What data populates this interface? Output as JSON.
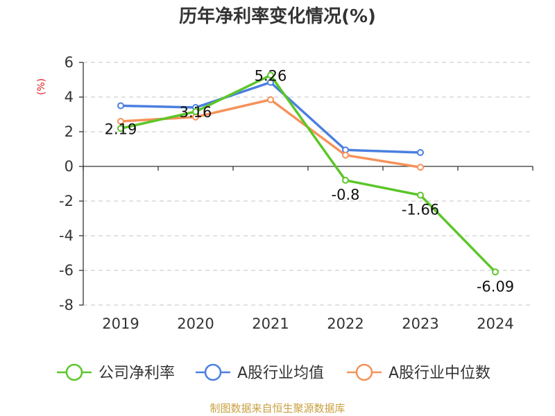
{
  "chart_data": {
    "type": "line",
    "title": "历年净利率变化情况(%)",
    "unit_label": "(%)",
    "categories": [
      "2019",
      "2020",
      "2021",
      "2022",
      "2023",
      "2024"
    ],
    "yticks": [
      "6",
      "4",
      "2",
      "0",
      "-2",
      "-4",
      "-6",
      "-8"
    ],
    "ylim": [
      -8,
      6
    ],
    "grid": true,
    "legend_position": "bottom",
    "series": [
      {
        "name": "公司净利率",
        "color": "#5cc629",
        "values": [
          2.19,
          3.16,
          5.26,
          -0.8,
          -1.66,
          -6.09
        ],
        "labels": [
          "2.19",
          "3.16",
          "5.26",
          "-0.8",
          "-1.66",
          "-6.09"
        ]
      },
      {
        "name": "A股行业均值",
        "color": "#4a7fe0",
        "values": [
          3.5,
          3.4,
          4.85,
          0.95,
          0.8,
          null
        ]
      },
      {
        "name": "A股行业中位数",
        "color": "#f5925a",
        "values": [
          2.6,
          2.85,
          3.85,
          0.65,
          -0.05,
          null
        ]
      }
    ]
  },
  "source_text": "制图数据来自恒生聚源数据库"
}
